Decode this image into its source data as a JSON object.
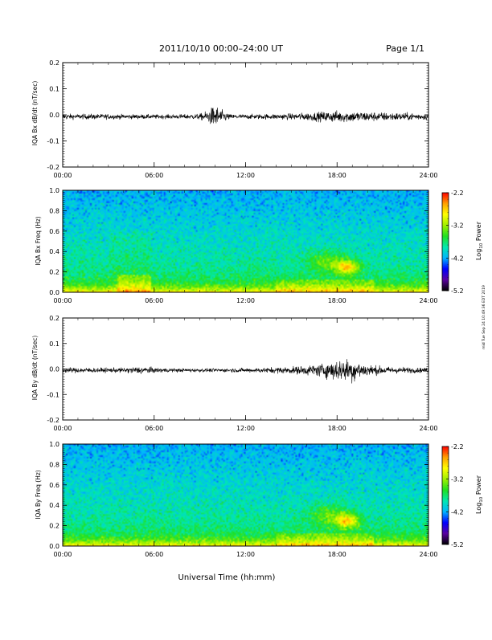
{
  "header": {
    "title": "2011/10/10   00:00–24:00 UT",
    "page_label": "Page 1/1"
  },
  "footer": {
    "xlabel": "Universal Time (hh:mm)",
    "stamp": "mid Tue Sep 24 10:49:36 EDT 2019"
  },
  "colorbar": {
    "label_prefix": "Log",
    "label_sub": "10",
    "label_suffix": " Power",
    "ticks": [
      "-2.2",
      "-3.2",
      "-4.2",
      "-5.2"
    ],
    "colors": [
      "#000000",
      "#5a00a0",
      "#0000ff",
      "#00b4ff",
      "#00e8b0",
      "#20e020",
      "#a0f000",
      "#ffff00",
      "#ffa000",
      "#ff0000"
    ]
  },
  "chart_data": [
    {
      "type": "line",
      "ylabel": "IQA Bx dB/dt (nT/sec)",
      "x_ticks": [
        "00:00",
        "06:00",
        "12:00",
        "18:00",
        "24:00"
      ],
      "xlim": [
        0,
        24
      ],
      "ylim": [
        -0.2,
        0.2
      ],
      "y_ticks": [
        "0.2",
        "0.1",
        "0.0",
        "-0.1",
        "-0.2"
      ],
      "series": [
        {
          "x": [
            0,
            1,
            2,
            3,
            4,
            5,
            6,
            7,
            8,
            9,
            9.5,
            10,
            10.5,
            11,
            12,
            13,
            14,
            15,
            16,
            17,
            18,
            19,
            20,
            21,
            22,
            23,
            24
          ],
          "values": [
            0.015,
            0.013,
            0.014,
            0.013,
            0.012,
            0.012,
            0.011,
            0.011,
            0.012,
            0.015,
            0.03,
            0.06,
            0.03,
            0.012,
            0.012,
            0.013,
            0.014,
            0.016,
            0.02,
            0.025,
            0.03,
            0.028,
            0.025,
            0.022,
            0.02,
            0.018,
            0.016
          ]
        }
      ]
    },
    {
      "type": "heatmap",
      "ylabel": "IQA Bx Freq (Hz)",
      "x_ticks": [
        "00:00",
        "06:00",
        "12:00",
        "18:00",
        "24:00"
      ],
      "xlim": [
        0,
        24
      ],
      "ylim": [
        0.0,
        1.0
      ],
      "y_ticks": [
        "1.0",
        "0.8",
        "0.6",
        "0.4",
        "0.2",
        "0.0"
      ],
      "zlim": [
        -5.2,
        -2.2
      ]
    },
    {
      "type": "line",
      "ylabel": "IQA By dB/dt (nT/sec)",
      "x_ticks": [
        "00:00",
        "06:00",
        "12:00",
        "18:00",
        "24:00"
      ],
      "xlim": [
        0,
        24
      ],
      "ylim": [
        -0.2,
        0.2
      ],
      "y_ticks": [
        "0.2",
        "0.1",
        "0.0",
        "-0.1",
        "-0.2"
      ],
      "series": [
        {
          "x": [
            0,
            1,
            2,
            3,
            4,
            5,
            6,
            7,
            8,
            9,
            10,
            11,
            12,
            13,
            14,
            15,
            16,
            17,
            18,
            19,
            20,
            21,
            22,
            23,
            24
          ],
          "values": [
            0.012,
            0.014,
            0.013,
            0.012,
            0.013,
            0.02,
            0.014,
            0.01,
            0.009,
            0.009,
            0.009,
            0.01,
            0.011,
            0.013,
            0.016,
            0.018,
            0.025,
            0.035,
            0.055,
            0.06,
            0.03,
            0.02,
            0.016,
            0.014,
            0.012
          ]
        }
      ]
    },
    {
      "type": "heatmap",
      "ylabel": "IQA By Freq (Hz)",
      "x_ticks": [
        "00:00",
        "06:00",
        "12:00",
        "18:00",
        "24:00"
      ],
      "xlim": [
        0,
        24
      ],
      "ylim": [
        0.0,
        1.0
      ],
      "y_ticks": [
        "1.0",
        "0.8",
        "0.6",
        "0.4",
        "0.2",
        "0.0"
      ],
      "zlim": [
        -5.2,
        -2.2
      ]
    }
  ]
}
